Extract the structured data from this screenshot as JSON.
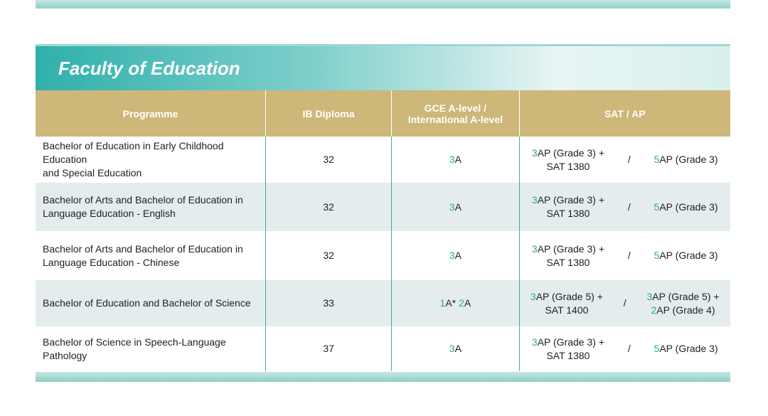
{
  "header": {
    "title": "Faculty of Education"
  },
  "table": {
    "columns": [
      "Programme",
      "IB Diploma",
      "GCE A-level / International A-level",
      "SAT / AP"
    ],
    "rows": [
      {
        "programme": [
          "Bachelor of Education in Early Childhood Education",
          "and Special Education"
        ],
        "ib": "32",
        "gce": [
          [
            {
              "hl": "3",
              "text": "A"
            }
          ]
        ],
        "sat_left": [
          [
            {
              "hl": "3",
              "text": "AP (Grade 3) +"
            }
          ],
          [
            {
              "text": "SAT 1380"
            }
          ]
        ],
        "sep": "/",
        "sat_right": [
          [
            {
              "hl": "5",
              "text": "AP (Grade 3)"
            }
          ]
        ]
      },
      {
        "programme": [
          "Bachelor of Arts and Bachelor of Education in",
          "Language Education - English"
        ],
        "ib": "32",
        "gce": [
          [
            {
              "hl": "3",
              "text": "A"
            }
          ]
        ],
        "sat_left": [
          [
            {
              "hl": "3",
              "text": "AP (Grade 3) +"
            }
          ],
          [
            {
              "text": "SAT 1380"
            }
          ]
        ],
        "sep": "/",
        "sat_right": [
          [
            {
              "hl": "5",
              "text": "AP (Grade 3)"
            }
          ]
        ]
      },
      {
        "programme": [
          "Bachelor of Arts and Bachelor of Education in",
          "Language Education - Chinese"
        ],
        "ib": "32",
        "gce": [
          [
            {
              "hl": "3",
              "text": "A"
            }
          ]
        ],
        "sat_left": [
          [
            {
              "hl": "3",
              "text": "AP (Grade 3) +"
            }
          ],
          [
            {
              "text": "SAT 1380"
            }
          ]
        ],
        "sep": "/",
        "sat_right": [
          [
            {
              "hl": "5",
              "text": "AP (Grade 3)"
            }
          ]
        ]
      },
      {
        "programme": [
          "Bachelor of Education and Bachelor of Science"
        ],
        "ib": "33",
        "gce": [
          [
            {
              "hl": "1",
              "text": "A*"
            },
            {
              "hl": "2",
              "text": "A"
            }
          ]
        ],
        "sat_left": [
          [
            {
              "hl": "3",
              "text": "AP (Grade 5) +"
            }
          ],
          [
            {
              "text": "SAT 1400"
            }
          ]
        ],
        "sep": "/",
        "sat_right": [
          [
            {
              "hl": "3",
              "text": "AP (Grade 5) +"
            }
          ],
          [
            {
              "hl": "2",
              "text": "AP (Grade 4)"
            }
          ]
        ]
      },
      {
        "programme": [
          "Bachelor of Science in Speech-Language Pathology"
        ],
        "ib": "37",
        "gce": [
          [
            {
              "hl": "3",
              "text": "A"
            }
          ]
        ],
        "sat_left": [
          [
            {
              "hl": "3",
              "text": "AP (Grade 3) +"
            }
          ],
          [
            {
              "text": "SAT 1380"
            }
          ]
        ],
        "sep": "/",
        "sat_right": [
          [
            {
              "hl": "5",
              "text": "AP (Grade 3)"
            }
          ]
        ]
      }
    ]
  }
}
